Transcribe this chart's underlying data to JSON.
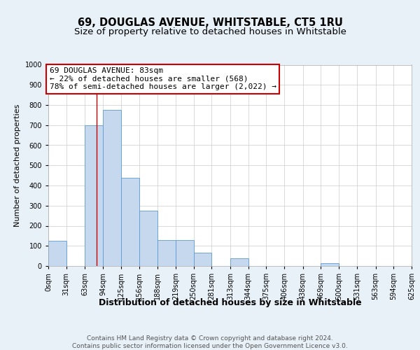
{
  "title": "69, DOUGLAS AVENUE, WHITSTABLE, CT5 1RU",
  "subtitle": "Size of property relative to detached houses in Whitstable",
  "xlabel": "Distribution of detached houses by size in Whitstable",
  "ylabel": "Number of detached properties",
  "bin_edges": [
    0,
    31,
    63,
    94,
    125,
    156,
    188,
    219,
    250,
    281,
    313,
    344,
    375,
    406,
    438,
    469,
    500,
    531,
    563,
    594,
    625
  ],
  "bar_heights": [
    125,
    0,
    700,
    775,
    440,
    275,
    130,
    130,
    65,
    0,
    40,
    0,
    0,
    0,
    0,
    15,
    0,
    0,
    0,
    0
  ],
  "bar_color": "#c5d8ed",
  "bar_edge_color": "#5b9bd5",
  "property_line_x": 83,
  "property_line_color": "#cc0000",
  "annotation_line1": "69 DOUGLAS AVENUE: 83sqm",
  "annotation_line2": "← 22% of detached houses are smaller (568)",
  "annotation_line3": "78% of semi-detached houses are larger (2,022) →",
  "annotation_box_color": "#ffffff",
  "annotation_box_edge": "#cc0000",
  "ylim": [
    0,
    1000
  ],
  "yticks": [
    0,
    100,
    200,
    300,
    400,
    500,
    600,
    700,
    800,
    900,
    1000
  ],
  "bg_color": "#e8f0f8",
  "plot_bg": "#ffffff",
  "grid_color": "#cccccc",
  "footer_text": "Contains HM Land Registry data © Crown copyright and database right 2024.\nContains public sector information licensed under the Open Government Licence v3.0.",
  "title_fontsize": 10.5,
  "subtitle_fontsize": 9.5,
  "xlabel_fontsize": 9,
  "ylabel_fontsize": 8,
  "tick_fontsize": 7,
  "annotation_fontsize": 8,
  "footer_fontsize": 6.5
}
